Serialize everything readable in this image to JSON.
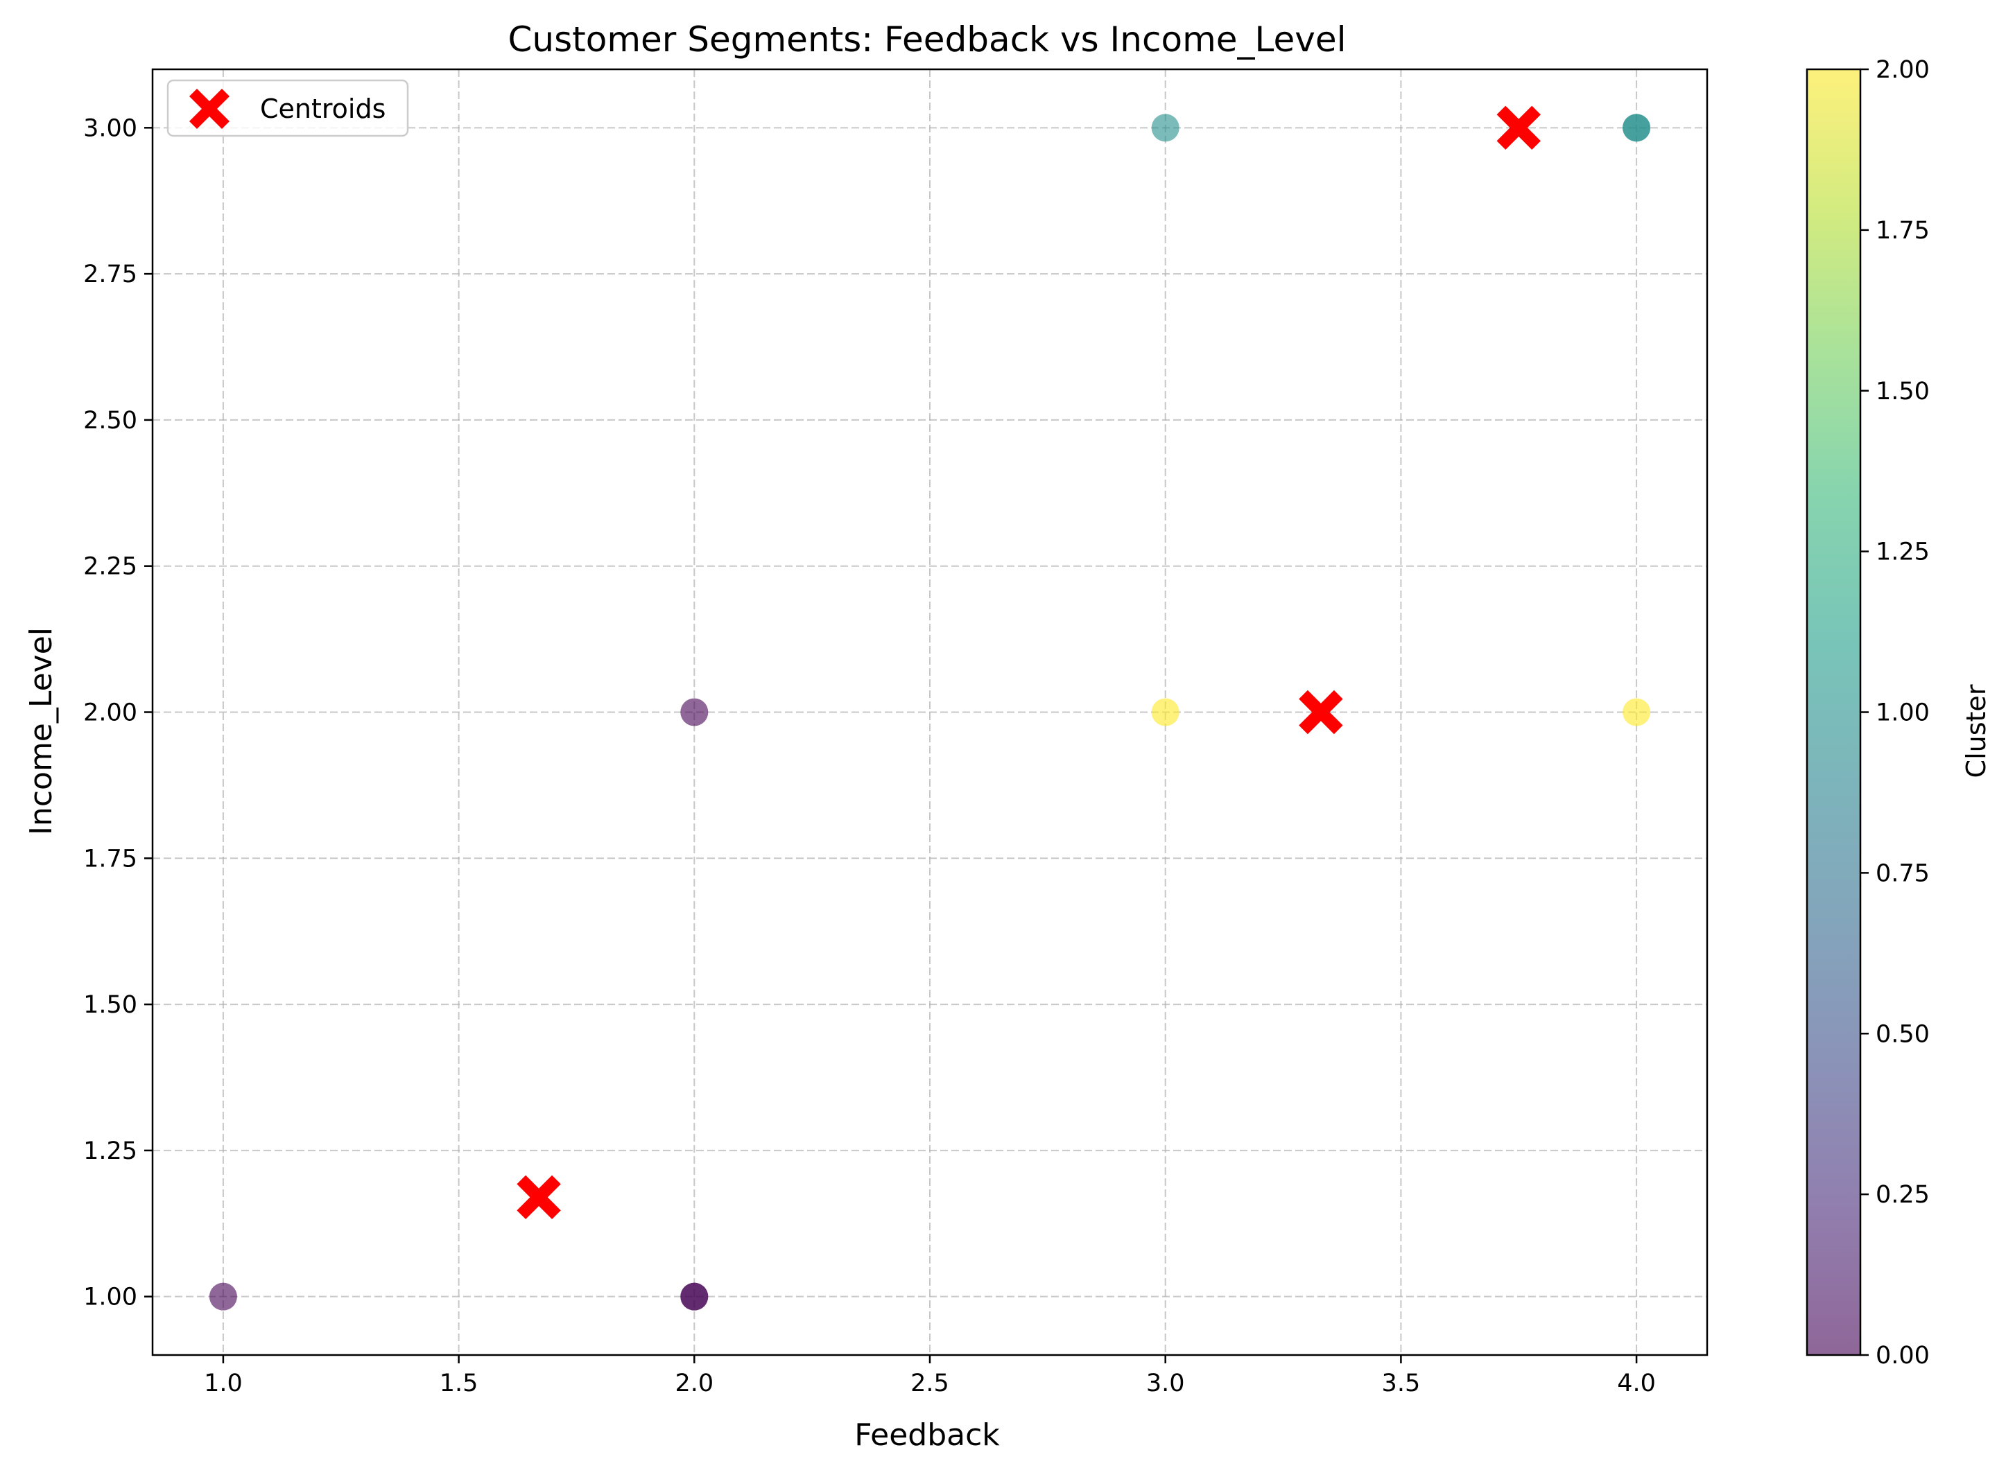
{
  "chart_data": {
    "type": "scatter",
    "title": "Customer Segments: Feedback vs Income_Level",
    "xlabel": "Feedback",
    "ylabel": "Income_Level",
    "xlim": [
      0.85,
      4.15
    ],
    "ylim": [
      0.9,
      3.1
    ],
    "x_ticks": [
      "1.0",
      "1.5",
      "2.0",
      "2.5",
      "3.0",
      "3.5",
      "4.0"
    ],
    "x_tick_values": [
      1.0,
      1.5,
      2.0,
      2.5,
      3.0,
      3.5,
      4.0
    ],
    "y_ticks": [
      "1.00",
      "1.25",
      "1.50",
      "1.75",
      "2.00",
      "2.25",
      "2.50",
      "2.75",
      "3.00"
    ],
    "y_tick_values": [
      1.0,
      1.25,
      1.5,
      1.75,
      2.0,
      2.25,
      2.5,
      2.75,
      3.0
    ],
    "grid": true,
    "grid_style": "dashed",
    "legend": {
      "position": "top-left",
      "entries": [
        "Centroids"
      ]
    },
    "colorbar": {
      "label": "Cluster",
      "range": [
        0.0,
        2.0
      ],
      "ticks": [
        "0.00",
        "0.25",
        "0.50",
        "0.75",
        "1.00",
        "1.25",
        "1.50",
        "1.75",
        "2.00"
      ],
      "tick_values": [
        0.0,
        0.25,
        0.5,
        0.75,
        1.0,
        1.25,
        1.5,
        1.75,
        2.0
      ],
      "colormap": "viridis"
    },
    "points": [
      {
        "x": 1.0,
        "y": 1.0,
        "cluster": 0
      },
      {
        "x": 2.0,
        "y": 1.0,
        "cluster": 0
      },
      {
        "x": 2.0,
        "y": 1.0,
        "cluster": 0
      },
      {
        "x": 2.0,
        "y": 2.0,
        "cluster": 0
      },
      {
        "x": 3.0,
        "y": 3.0,
        "cluster": 1
      },
      {
        "x": 4.0,
        "y": 3.0,
        "cluster": 1
      },
      {
        "x": 4.0,
        "y": 3.0,
        "cluster": 1
      },
      {
        "x": 3.0,
        "y": 2.0,
        "cluster": 2
      },
      {
        "x": 4.0,
        "y": 2.0,
        "cluster": 2
      }
    ],
    "centroids": {
      "name": "Centroids",
      "color": "#ff0000",
      "marker": "X",
      "points": [
        {
          "x": 1.67,
          "y": 1.17
        },
        {
          "x": 3.75,
          "y": 3.0
        },
        {
          "x": 3.33,
          "y": 2.0
        }
      ]
    },
    "point_alpha": 0.6
  }
}
